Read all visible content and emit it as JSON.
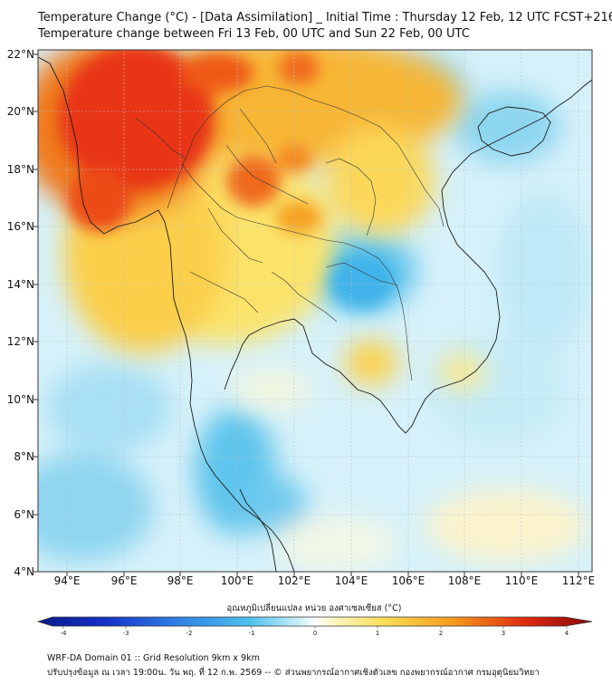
{
  "header": {
    "title_line1": "Temperature Change (°C) - [Data Assimilation] _ Initial Time : Thursday 12 Feb, 12 UTC FCST+216",
    "title_line2": "Temperature change between Fri 13 Feb, 00 UTC and Sun 22 Feb, 00 UTC"
  },
  "map": {
    "lat_labels": [
      "22°N",
      "20°N",
      "18°N",
      "16°N",
      "14°N",
      "12°N",
      "10°N",
      "8°N",
      "6°N",
      "4°N"
    ],
    "lon_labels": [
      "94°E",
      "96°E",
      "98°E",
      "100°E",
      "102°E",
      "104°E",
      "106°E",
      "108°E",
      "110°E",
      "112°E"
    ],
    "lat_range": [
      4,
      22
    ],
    "lon_range": [
      93,
      112.5
    ],
    "field_regions": [
      {
        "label": "strong warming, Myanmar north-west",
        "value": 3.0
      },
      {
        "label": "warming, Myanmar south",
        "value": 2.0
      },
      {
        "label": "warming, northern Thailand",
        "value": 1.8
      },
      {
        "label": "warming, south China",
        "value": 1.5
      },
      {
        "label": "warming, north Laos",
        "value": 1.5
      },
      {
        "label": "warming, central Thailand",
        "value": 1.0
      },
      {
        "label": "warming, eastern Thailand coast",
        "value": 1.2
      },
      {
        "label": "cooling, Cambodia",
        "value": -1.0
      },
      {
        "label": "cooling, Gulf of Tonkin / Hainan",
        "value": -0.8
      },
      {
        "label": "cooling, South China Sea",
        "value": -0.5
      },
      {
        "label": "cooling, Andaman Sea",
        "value": -0.6
      },
      {
        "label": "cooling, Malay peninsula",
        "value": -1.2
      },
      {
        "label": "slight warming, south-east sea",
        "value": 0.3
      }
    ]
  },
  "colorbar": {
    "title": "อุณหภูมิเปลี่ยนแปลง หน่วย องศาเซลเซียส (°C)",
    "min": -4,
    "max": 4,
    "ticks": [
      "-4",
      "-3",
      "-2",
      "-1",
      "0",
      "1",
      "2",
      "3",
      "4"
    ]
  },
  "footer": {
    "line1": "WRF-DA Domain 01 :: Grid Resolution 9km x 9km",
    "line2": "ปรับปรุงข้อมูล ณ เวลา 19:00น. วัน พฤ. ที่ 12 ก.พ. 2569 -- © ส่วนพยากรณ์อากาศเชิงตัวเลข กองพยากรณ์อากาศ กรมอุตุนิยมวิทยา"
  },
  "colors": {
    "warm_strong": "#e8250e",
    "warm": "#f6a41d",
    "warm_light": "#fbe66a",
    "neutral": "#fdfdf4",
    "cool_light": "#cdeef8",
    "cool": "#56c4ec",
    "cool_strong": "#2c8fe0"
  }
}
